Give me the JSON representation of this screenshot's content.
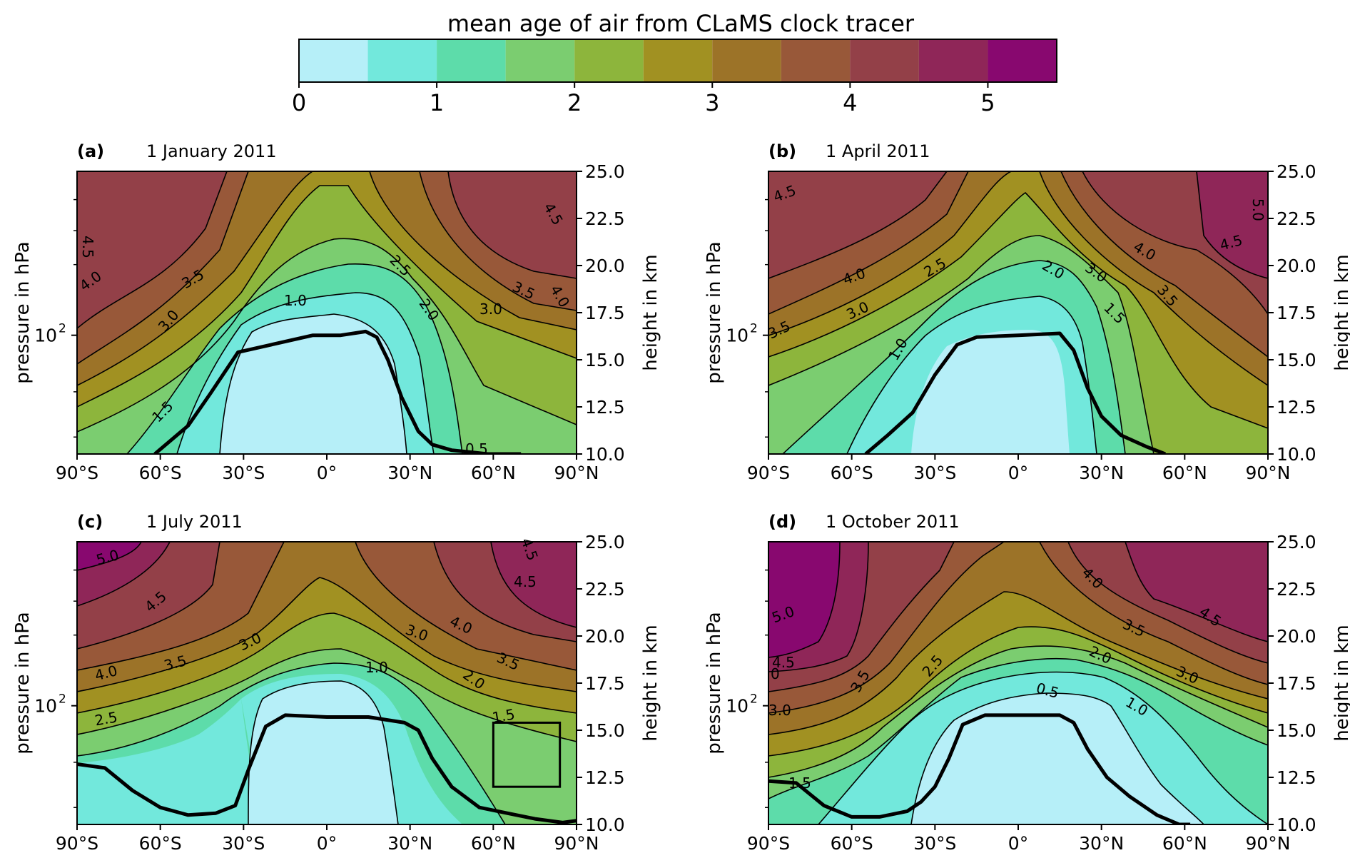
{
  "colorbar": {
    "title": "mean age of air from CLaMS clock tracer",
    "ticks": [
      "0",
      "1",
      "2",
      "3",
      "4",
      "5"
    ],
    "boundaries": [
      0,
      0.5,
      1,
      1.5,
      2,
      2.5,
      3,
      3.5,
      4,
      4.5,
      5,
      5.5
    ],
    "colors": [
      "#b6eff8",
      "#72e8dc",
      "#5ddcaa",
      "#7bcd70",
      "#8db53c",
      "#a19122",
      "#9c7328",
      "#985839",
      "#934048",
      "#8f2658",
      "#88086f"
    ]
  },
  "axes": {
    "ylabel_left": "pressure in hPa",
    "ylabel_right": "height in km",
    "ytick_left": "10",
    "ytick_left_exp": "2",
    "yticks_right": [
      "25.0",
      "22.5",
      "20.0",
      "17.5",
      "15.0",
      "12.5",
      "10.0"
    ],
    "xticks": [
      "90°S",
      "60°S",
      "30°S",
      "0°",
      "30°N",
      "60°N",
      "90°N"
    ]
  },
  "chart_data": [
    {
      "type": "heatmap",
      "panel": "(a)",
      "date": "1 January 2011",
      "x_range": [
        -90,
        90
      ],
      "height_range_km": [
        10,
        25
      ],
      "contour_levels": [
        0.5,
        1.0,
        1.5,
        2.0,
        2.5,
        3.0,
        3.5,
        4.0,
        4.5,
        5.0
      ],
      "contour_labels": [
        "1.0",
        "1.5",
        "2.0",
        "2.5",
        "3.0",
        "3.0",
        "3.5",
        "3.5",
        "4.0",
        "4.0",
        "4.5",
        "4.5",
        "0.5"
      ],
      "tropopause": {
        "lat": [
          -62,
          -50,
          -42,
          -32,
          -20,
          -5,
          5,
          14,
          18,
          22,
          27,
          33,
          38,
          45,
          58,
          70
        ],
        "height_km": [
          10.0,
          11.5,
          13.2,
          15.4,
          15.8,
          16.3,
          16.3,
          16.5,
          16.2,
          15.0,
          13.0,
          11.2,
          10.5,
          10.2,
          10.0,
          10.0
        ]
      }
    },
    {
      "type": "heatmap",
      "panel": "(b)",
      "date": "1 April 2011",
      "x_range": [
        -90,
        90
      ],
      "height_range_km": [
        10,
        25
      ],
      "contour_levels": [
        0.5,
        1.0,
        1.5,
        2.0,
        2.5,
        3.0,
        3.5,
        4.0,
        4.5,
        5.0
      ],
      "contour_labels": [
        "4.5",
        "4.0",
        "3.0",
        "3.5",
        "2.5",
        "1.0",
        "2.0",
        "3.0",
        "1.5",
        "3.5",
        "4.0",
        "4.5",
        "5.0"
      ],
      "tropopause": {
        "lat": [
          -55,
          -47,
          -38,
          -30,
          -22,
          -15,
          0,
          15,
          20,
          25,
          30,
          37,
          46,
          53
        ],
        "height_km": [
          10.0,
          11.0,
          12.2,
          14.2,
          15.8,
          16.2,
          16.3,
          16.4,
          15.5,
          13.5,
          12.0,
          11.0,
          10.4,
          10.0
        ]
      }
    },
    {
      "type": "heatmap",
      "panel": "(c)",
      "date": "1 July 2011",
      "x_range": [
        -90,
        90
      ],
      "height_range_km": [
        10,
        25
      ],
      "contour_levels": [
        0.5,
        1.0,
        1.5,
        2.0,
        2.5,
        3.0,
        3.5,
        4.0,
        4.5,
        5.0
      ],
      "contour_labels": [
        "5.0",
        "4.5",
        "4.0",
        "3.5",
        "2.5",
        "3.0",
        "3.0",
        "1.0",
        "4.0",
        "3.5",
        "2.0",
        "1.5",
        "4.5",
        "4.5"
      ],
      "tropopause": {
        "lat": [
          -90,
          -80,
          -70,
          -60,
          -50,
          -40,
          -33,
          -28,
          -22,
          -15,
          0,
          15,
          28,
          33,
          38,
          45,
          55,
          65,
          75,
          85,
          90
        ],
        "height_km": [
          13.2,
          13.0,
          11.8,
          10.9,
          10.5,
          10.6,
          11.0,
          13.0,
          15.2,
          15.8,
          15.7,
          15.7,
          15.4,
          15.0,
          13.5,
          12.0,
          10.9,
          10.6,
          10.3,
          10.1,
          10.2
        ]
      },
      "highlight_box": {
        "lat_range": [
          60,
          84
        ],
        "height_range_km": [
          12.0,
          15.4
        ]
      }
    },
    {
      "type": "heatmap",
      "panel": "(d)",
      "date": "1 October 2011",
      "x_range": [
        -90,
        90
      ],
      "height_range_km": [
        10,
        25
      ],
      "contour_labels": [
        "5.0",
        "4.5",
        "3.0",
        "3.5",
        "2.5",
        "1.5",
        "0.5",
        "2.0",
        "1.0",
        "4.0",
        "3.5",
        "3.0",
        "4.5",
        "0"
      ],
      "contour_levels": [
        0.5,
        1.0,
        1.5,
        2.0,
        2.5,
        3.0,
        3.5,
        4.0,
        4.5,
        5.0
      ],
      "tropopause": {
        "lat": [
          -90,
          -80,
          -70,
          -60,
          -50,
          -40,
          -35,
          -30,
          -25,
          -20,
          -12,
          0,
          15,
          20,
          25,
          32,
          40,
          50,
          58,
          62
        ],
        "height_km": [
          12.3,
          12.2,
          11.0,
          10.4,
          10.4,
          10.7,
          11.2,
          12.0,
          13.5,
          15.3,
          15.8,
          15.8,
          15.8,
          15.4,
          14.0,
          12.5,
          11.5,
          10.5,
          10.0,
          10.0
        ]
      }
    }
  ]
}
